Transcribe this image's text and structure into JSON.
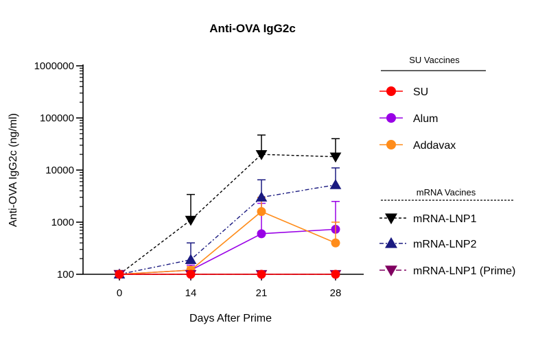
{
  "chart_data": {
    "type": "line",
    "title": "Anti-OVA  IgG2c",
    "xlabel": "Days After Prime",
    "ylabel": "Anti-OVA IgG2c (ng/ml)",
    "yscale": "log",
    "ylim": [
      100,
      1000000
    ],
    "x": [
      0,
      14,
      21,
      28
    ],
    "x_tick_labels": [
      "0",
      "14",
      "21",
      "28"
    ],
    "y_tick_labels": [
      "100",
      "1000",
      "10000",
      "100000",
      "1000000"
    ],
    "grid": false,
    "legend_position": "right",
    "legend_groups": [
      {
        "header": "SU  Vaccines",
        "series": [
          "SU",
          "Alum",
          "Addavax"
        ]
      },
      {
        "header": "mRNA Vacines",
        "series": [
          "mRNA-LNP1",
          "mRNA-LNP2",
          "mRNA-LNP1 (Prime)"
        ]
      }
    ],
    "series": [
      {
        "name": "SU",
        "values": [
          100,
          100,
          100,
          100
        ],
        "error_upper": [
          null,
          null,
          null,
          null
        ],
        "color": "#ff0000",
        "marker": "circle",
        "line": "solid"
      },
      {
        "name": "Alum",
        "values": [
          100,
          120,
          600,
          730
        ],
        "error_upper": [
          null,
          150,
          2300,
          2500
        ],
        "color": "#9900e6",
        "marker": "circle",
        "line": "solid"
      },
      {
        "name": "Addavax",
        "values": [
          100,
          120,
          1600,
          400
        ],
        "error_upper": [
          null,
          140,
          3000,
          1000
        ],
        "color": "#ff8c1a",
        "marker": "circle",
        "line": "solid"
      },
      {
        "name": "mRNA-LNP1",
        "values": [
          100,
          1100,
          20000,
          18000
        ],
        "error_upper": [
          null,
          3400,
          47000,
          40000
        ],
        "color": "#000000",
        "marker": "triangle-down",
        "line": "dashed"
      },
      {
        "name": "mRNA-LNP2",
        "values": [
          100,
          190,
          3000,
          5200
        ],
        "error_upper": [
          null,
          400,
          6500,
          11000
        ],
        "color": "#1a1a80",
        "marker": "triangle-up",
        "line": "dashdot"
      },
      {
        "name": "mRNA-LNP1 (Prime)",
        "values": [
          100,
          100,
          100,
          100
        ],
        "error_upper": [
          null,
          null,
          null,
          null
        ],
        "color": "#800060",
        "marker": "triangle-down",
        "line": "longdash"
      }
    ]
  }
}
